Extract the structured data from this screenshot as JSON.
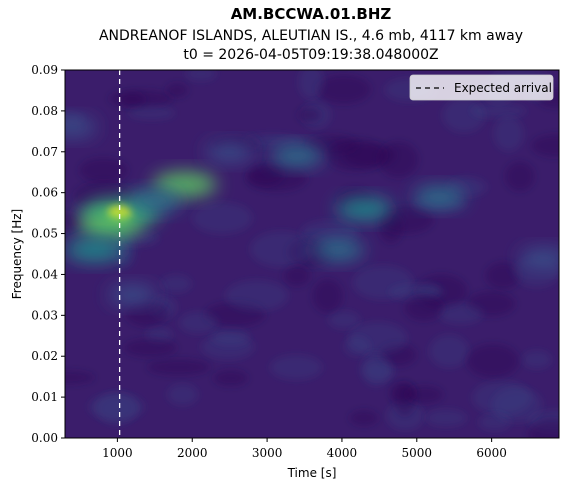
{
  "chart_data": {
    "type": "heatmap",
    "title": "AM.BCCWA.01.BHZ",
    "subtitle": "ANDREANOF ISLANDS, ALEUTIAN IS., 4.6 mb, 4117 km away",
    "subtitle2": "t0 = 2026-04-05T09:19:38.048000Z",
    "xlabel": "Time [s]",
    "ylabel": "Frequency [Hz]",
    "xlim": [
      300,
      6900
    ],
    "ylim": [
      0.0,
      0.09
    ],
    "xticks": [
      1000,
      2000,
      3000,
      4000,
      5000,
      6000
    ],
    "xtick_labels": [
      "1000",
      "2000",
      "3000",
      "4000",
      "5000",
      "6000"
    ],
    "yticks": [
      0.0,
      0.01,
      0.02,
      0.03,
      0.04,
      0.05,
      0.06,
      0.07,
      0.08,
      0.09
    ],
    "ytick_labels": [
      "0.00",
      "0.01",
      "0.02",
      "0.03",
      "0.04",
      "0.05",
      "0.06",
      "0.07",
      "0.08",
      "0.09"
    ],
    "colormap": "viridis",
    "grid": false,
    "legend": {
      "position": "top-right",
      "entries": [
        "Expected arrival"
      ]
    },
    "expected_arrival_time": 1030,
    "hotspots": [
      {
        "time": 1030,
        "freq": 0.055,
        "intensity": 1.0
      },
      {
        "time": 900,
        "freq": 0.052,
        "intensity": 0.55
      },
      {
        "time": 1900,
        "freq": 0.062,
        "intensity": 0.6
      },
      {
        "time": 700,
        "freq": 0.046,
        "intensity": 0.5
      },
      {
        "time": 1500,
        "freq": 0.058,
        "intensity": 0.35
      },
      {
        "time": 4300,
        "freq": 0.056,
        "intensity": 0.4
      },
      {
        "time": 3400,
        "freq": 0.069,
        "intensity": 0.3
      },
      {
        "time": 5300,
        "freq": 0.059,
        "intensity": 0.3
      },
      {
        "time": 3950,
        "freq": 0.046,
        "intensity": 0.3
      },
      {
        "time": 6700,
        "freq": 0.044,
        "intensity": 0.25
      },
      {
        "time": 400,
        "freq": 0.076,
        "intensity": 0.2
      },
      {
        "time": 2500,
        "freq": 0.07,
        "intensity": 0.2
      },
      {
        "time": 1200,
        "freq": 0.035,
        "intensity": 0.2
      }
    ]
  }
}
